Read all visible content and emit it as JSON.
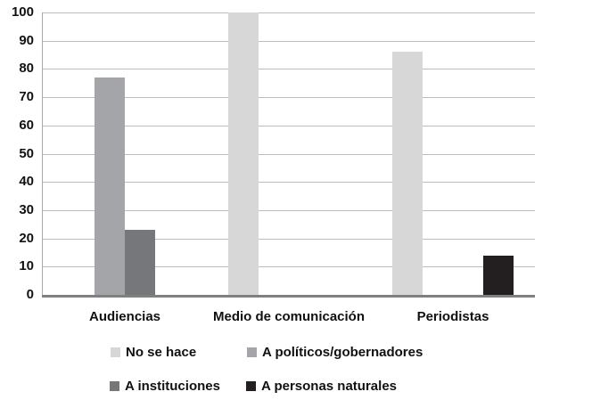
{
  "chart_data": {
    "type": "bar",
    "title": "",
    "xlabel": "",
    "ylabel": "",
    "categories": [
      "Audiencias",
      "Medio de comunicación",
      "Periodistas"
    ],
    "series": [
      {
        "name": "No se hace",
        "color": "#d7d7d8",
        "values": [
          null,
          100,
          86
        ]
      },
      {
        "name": "A políticos/gobernadores",
        "color": "#a3a5a8",
        "values": [
          77,
          null,
          null
        ]
      },
      {
        "name": "A instituciones",
        "color": "#76777a",
        "values": [
          23,
          null,
          null
        ]
      },
      {
        "name": "A personas naturales",
        "color": "#231f20",
        "values": [
          null,
          null,
          14
        ]
      }
    ],
    "ylim": [
      0,
      100
    ],
    "yticks": [
      0,
      10,
      20,
      30,
      40,
      50,
      60,
      70,
      80,
      90,
      100
    ],
    "grid": true,
    "legend_position": "bottom",
    "axis_colors": {
      "gridline": "#bcbcbc",
      "axis_line": "#808080",
      "text": "#111111"
    }
  }
}
